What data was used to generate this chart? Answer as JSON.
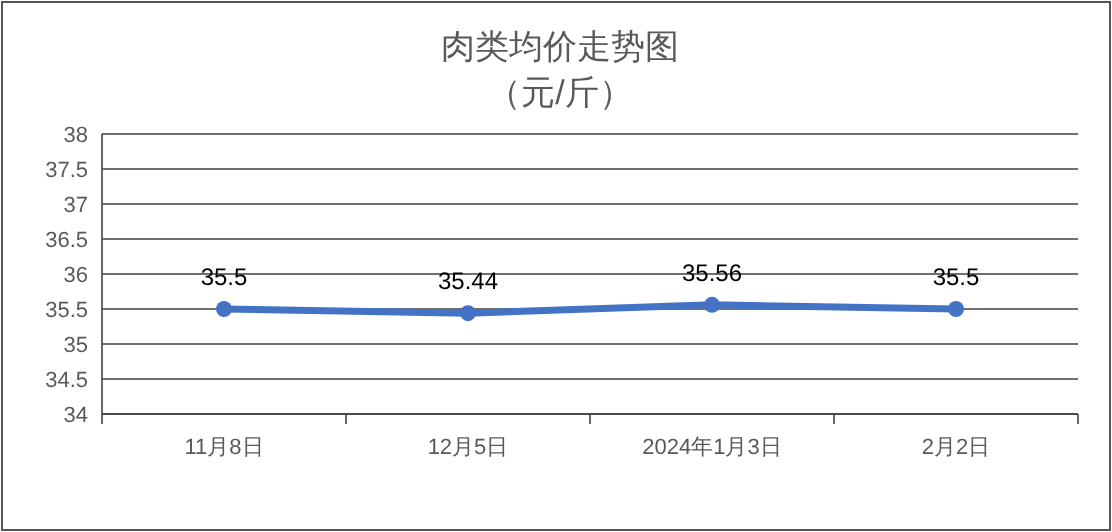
{
  "chart_data": {
    "type": "line",
    "title": "肉类均价走势图",
    "subtitle": "（元/斤）",
    "categories": [
      "11月8日",
      "12月5日",
      "2024年1月3日",
      "2月2日"
    ],
    "series": [
      {
        "color": "#4472c4",
        "values": [
          35.5,
          35.44,
          35.56,
          35.5
        ]
      }
    ],
    "ylim": [
      34,
      38
    ],
    "yticks": [
      34,
      34.5,
      35,
      35.5,
      36,
      36.5,
      37,
      37.5,
      38
    ],
    "grid": "y",
    "marker": "circle",
    "line_style": "solid",
    "data_labels": true
  }
}
